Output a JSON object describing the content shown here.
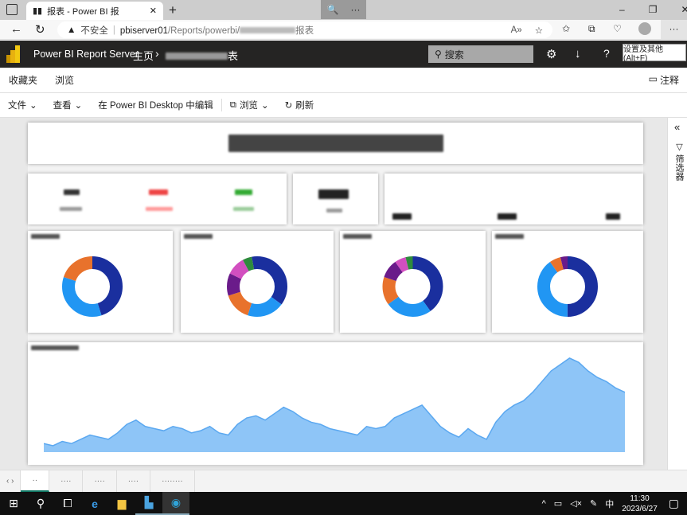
{
  "browser": {
    "tab_title": "报表 - Power BI 报",
    "new_tab": "+",
    "zoom_popup": {
      "zoom_icon": "🔍",
      "more": "···"
    },
    "window_controls": {
      "minimize": "–",
      "restore": "❐",
      "close": "✕"
    },
    "address": {
      "security": "不安全",
      "url_host": "pbiserver01",
      "url_path": "/Reports/powerbi/",
      "url_tail": "报表"
    },
    "more": "···"
  },
  "header": {
    "app_name": "Power BI Report Server",
    "breadcrumb_home": "主页",
    "breadcrumb_sep": "›",
    "breadcrumb_report": "表",
    "search_placeholder": "搜索",
    "tooltip": "设置及其他 (Alt+F)"
  },
  "nav": {
    "favorites": "收藏夹",
    "browse": "浏览",
    "comments": "注释"
  },
  "toolbar": {
    "file": "文件",
    "view": "查看",
    "edit_desktop": "在 Power BI Desktop 中编辑",
    "browse": "浏览",
    "refresh": "刷新"
  },
  "filters_pane": {
    "label": "筛选器",
    "collapse": "«"
  },
  "donut_colors": [
    "#1a2f9e",
    "#2196f3",
    "#e8722c",
    "#6a1b8a",
    "#d24fc0",
    "#2e8b3d"
  ],
  "donuts": [
    {
      "segments": [
        45,
        35,
        20
      ]
    },
    {
      "segments": [
        35,
        20,
        15,
        12,
        10,
        5,
        3
      ]
    },
    {
      "segments": [
        40,
        25,
        15,
        10,
        6,
        4
      ]
    },
    {
      "segments": [
        50,
        40,
        6,
        4
      ]
    }
  ],
  "area_chart": {
    "type": "area",
    "color": "#8ec5f7",
    "line": "#5ba8f0",
    "values": [
      4,
      3,
      5,
      4,
      6,
      8,
      7,
      6,
      9,
      13,
      15,
      12,
      11,
      10,
      12,
      11,
      9,
      10,
      12,
      9,
      8,
      13,
      16,
      17,
      15,
      18,
      21,
      19,
      16,
      14,
      13,
      11,
      10,
      9,
      8,
      12,
      11,
      12,
      16,
      18,
      20,
      22,
      17,
      12,
      9,
      7,
      11,
      8,
      6,
      14,
      19,
      22,
      24,
      28,
      33,
      38,
      41,
      44,
      42,
      38,
      35,
      33,
      30,
      28
    ]
  },
  "bottom_tabs": [
    "··",
    "····",
    "····",
    "····",
    "········"
  ],
  "taskbar": {
    "time": "11:30",
    "date": "2023/6/27",
    "ime": "中"
  }
}
